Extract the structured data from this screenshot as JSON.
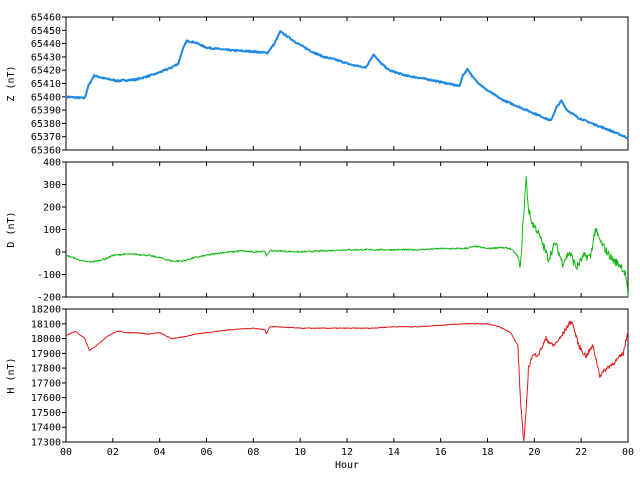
{
  "chart_data": [
    {
      "type": "line",
      "ylabel": "Z (nT)",
      "ylim": [
        65360,
        65460
      ],
      "yticks": [
        65360,
        65370,
        65380,
        65390,
        65400,
        65410,
        65420,
        65430,
        65440,
        65450,
        65460
      ],
      "color": "#1e88e5",
      "xlim": [
        0,
        24
      ],
      "series": [
        {
          "x": [
            0.0,
            0.8,
            0.95,
            1.2,
            1.6,
            2.2,
            3.0,
            3.8,
            4.5,
            4.8,
            4.95,
            5.15,
            5.5,
            6.0,
            7.0,
            8.0,
            8.6,
            8.9,
            9.15,
            9.4,
            9.9,
            10.5,
            11.0,
            11.5,
            12.2,
            12.8,
            13.0,
            13.15,
            13.4,
            13.8,
            14.5,
            15.5,
            16.3,
            16.8,
            16.95,
            17.15,
            17.4,
            17.9,
            18.6,
            19.4,
            20.2,
            20.7,
            20.95,
            21.15,
            21.4,
            21.9,
            22.6,
            23.2,
            23.6,
            24.0
          ],
          "y": [
            65400,
            65399,
            65408,
            65416,
            65414,
            65412,
            65413,
            65417,
            65422,
            65425,
            65434,
            65442,
            65441,
            65437,
            65435,
            65434,
            65433,
            65440,
            65449,
            65446,
            65440,
            65434,
            65430,
            65428,
            65424,
            65422,
            65428,
            65432,
            65426,
            65420,
            65416,
            65413,
            65410,
            65408,
            65416,
            65421,
            65414,
            65406,
            65398,
            65392,
            65386,
            65382,
            65392,
            65397,
            65390,
            65384,
            65379,
            65375,
            65372,
            65369
          ]
        }
      ]
    },
    {
      "type": "line",
      "ylabel": "D (nT)",
      "ylim": [
        -200,
        400
      ],
      "yticks": [
        -200,
        -100,
        0,
        100,
        200,
        300,
        400
      ],
      "color": "#13b813",
      "xlim": [
        0,
        24
      ],
      "series": [
        {
          "x": [
            0.0,
            0.3,
            0.7,
            1.0,
            1.3,
            1.7,
            2.0,
            2.5,
            3.0,
            3.5,
            4.0,
            4.5,
            5.0,
            5.5,
            6.0,
            6.5,
            7.0,
            7.5,
            8.0,
            8.5,
            8.55,
            8.7,
            9.0,
            10.0,
            11.0,
            12.0,
            13.0,
            14.0,
            15.0,
            16.0,
            17.0,
            17.5,
            18.0,
            18.5,
            19.0,
            19.3,
            19.4,
            19.5,
            19.6,
            19.65,
            19.75,
            19.9,
            20.1,
            20.3,
            20.6,
            20.9,
            21.2,
            21.5,
            21.8,
            22.1,
            22.4,
            22.6,
            22.8,
            23.1,
            23.4,
            23.7,
            23.9,
            24.0
          ],
          "y": [
            -15,
            -25,
            -40,
            -45,
            -40,
            -30,
            -15,
            -10,
            -10,
            -15,
            -25,
            -40,
            -40,
            -25,
            -15,
            -5,
            0,
            5,
            0,
            5,
            -20,
            5,
            5,
            0,
            5,
            10,
            10,
            10,
            10,
            15,
            15,
            25,
            15,
            20,
            15,
            -20,
            -80,
            100,
            250,
            330,
            190,
            130,
            100,
            50,
            -30,
            40,
            -50,
            0,
            -70,
            -20,
            -20,
            100,
            50,
            0,
            -40,
            -60,
            -100,
            -200
          ]
        }
      ]
    },
    {
      "type": "line",
      "ylabel": "H (nT)",
      "ylim": [
        17300,
        18200
      ],
      "yticks": [
        17300,
        17400,
        17500,
        17600,
        17700,
        17800,
        17900,
        18000,
        18100,
        18200
      ],
      "color": "#e01a1a",
      "xlim": [
        0,
        24
      ],
      "xticks": [
        "00",
        "02",
        "04",
        "06",
        "08",
        "10",
        "12",
        "14",
        "16",
        "18",
        "20",
        "22",
        "00"
      ],
      "xlabel": "Hour",
      "series": [
        {
          "x": [
            0.0,
            0.4,
            0.8,
            1.0,
            1.2,
            1.5,
            1.8,
            2.2,
            2.6,
            3.0,
            3.5,
            4.0,
            4.5,
            5.0,
            5.5,
            6.0,
            7.0,
            8.0,
            8.5,
            8.55,
            8.7,
            9.0,
            10.0,
            11.0,
            12.0,
            13.0,
            14.0,
            15.0,
            16.0,
            17.0,
            18.0,
            18.5,
            19.0,
            19.3,
            19.4,
            19.5,
            19.55,
            19.65,
            19.75,
            19.9,
            20.2,
            20.5,
            20.8,
            21.1,
            21.4,
            21.6,
            21.9,
            22.2,
            22.5,
            22.8,
            23.1,
            23.5,
            23.8,
            24.0
          ],
          "y": [
            18020,
            18050,
            18000,
            17920,
            17940,
            17980,
            18020,
            18050,
            18040,
            18040,
            18030,
            18040,
            18000,
            18010,
            18030,
            18040,
            18060,
            18070,
            18060,
            18030,
            18080,
            18080,
            18070,
            18070,
            18070,
            18070,
            18080,
            18080,
            18090,
            18100,
            18100,
            18080,
            18040,
            17950,
            17600,
            17400,
            17300,
            17500,
            17800,
            17880,
            17900,
            18000,
            17950,
            18000,
            18080,
            18120,
            17950,
            17880,
            17950,
            17750,
            17800,
            17850,
            17900,
            18050
          ]
        }
      ]
    }
  ]
}
